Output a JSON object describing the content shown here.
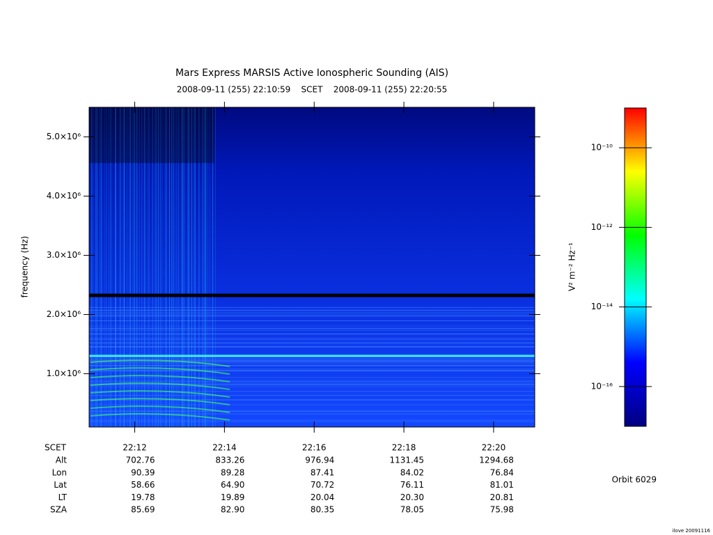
{
  "chart_data": {
    "type": "spectrogram",
    "title": "Mars Express MARSIS Active Ionospheric Sounding (AIS)",
    "subtitle": "2008-09-11 (255) 22:10:59    SCET    2008-09-11 (255) 22:20:55",
    "y_label": "frequency (Hz)",
    "xlim": [
      1330.983,
      1340.917
    ],
    "xticks": [
      {
        "value": 1332,
        "label": "22:12"
      },
      {
        "value": 1334,
        "label": "22:14"
      },
      {
        "value": 1336,
        "label": "22:16"
      },
      {
        "value": 1338,
        "label": "22:18"
      },
      {
        "value": 1340,
        "label": "22:20"
      }
    ],
    "ylim": [
      100000,
      5500000
    ],
    "yticks": [
      {
        "value": 1000000,
        "label": "1.0×10⁶"
      },
      {
        "value": 2000000,
        "label": "2.0×10⁶"
      },
      {
        "value": 3000000,
        "label": "3.0×10⁶"
      },
      {
        "value": 4000000,
        "label": "4.0×10⁶"
      },
      {
        "value": 5000000,
        "label": "5.0×10⁶"
      }
    ],
    "colorbar": {
      "label": "V² m⁻² Hz⁻¹",
      "scale": "log",
      "lim": [
        1e-17,
        1e-09
      ],
      "ticks": [
        {
          "value": 1e-10,
          "label": "10⁻¹⁰"
        },
        {
          "value": 1e-12,
          "label": "10⁻¹²"
        },
        {
          "value": 1e-14,
          "label": "10⁻¹⁴"
        },
        {
          "value": 1e-16,
          "label": "10⁻¹⁶"
        }
      ],
      "colors": [
        "#000080",
        "#0000ff",
        "#00ffff",
        "#00ff00",
        "#ffff00",
        "#ff0000"
      ]
    }
  },
  "ephemeris": {
    "header": "SCET",
    "rows": [
      {
        "name": "Alt",
        "values": [
          "702.76",
          "833.26",
          "976.94",
          "1131.45",
          "1294.68"
        ]
      },
      {
        "name": "Lon",
        "values": [
          "90.39",
          "89.28",
          "87.41",
          "84.02",
          "76.84"
        ]
      },
      {
        "name": "Lat",
        "values": [
          "58.66",
          "64.90",
          "70.72",
          "76.11",
          "81.01"
        ]
      },
      {
        "name": "LT",
        "values": [
          "19.78",
          "19.89",
          "20.04",
          "20.30",
          "20.81"
        ]
      },
      {
        "name": "SZA",
        "values": [
          "85.69",
          "82.90",
          "80.35",
          "78.05",
          "75.98"
        ]
      }
    ]
  },
  "orbit": "Orbit 6029",
  "footer": "ilove 20091116"
}
